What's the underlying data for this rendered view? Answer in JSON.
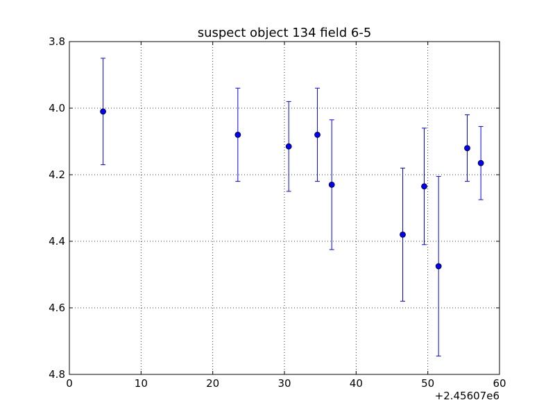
{
  "chart_data": {
    "type": "scatter",
    "title": "suspect object 134 field 6-5",
    "xlabel": "",
    "ylabel": "",
    "x_offset_label": "+2.45607e6",
    "xlim": [
      0,
      60
    ],
    "ylim": [
      4.8,
      3.8
    ],
    "y_inverted": true,
    "grid": true,
    "x_ticks": [
      0,
      10,
      20,
      30,
      40,
      50,
      60
    ],
    "x_tick_labels": [
      "0",
      "10",
      "20",
      "30",
      "40",
      "50",
      "60"
    ],
    "y_ticks": [
      3.8,
      4.0,
      4.2,
      4.4,
      4.6,
      4.8
    ],
    "y_tick_labels": [
      "3.8",
      "4.0",
      "4.2",
      "4.4",
      "4.6",
      "4.8"
    ],
    "marker_color": "#0000ff",
    "points": [
      {
        "x": 4.7,
        "y": 4.01,
        "err": 0.16
      },
      {
        "x": 23.5,
        "y": 4.08,
        "err": 0.14
      },
      {
        "x": 30.6,
        "y": 4.115,
        "err": 0.135
      },
      {
        "x": 34.6,
        "y": 4.08,
        "err": 0.14
      },
      {
        "x": 36.6,
        "y": 4.23,
        "err": 0.195
      },
      {
        "x": 46.5,
        "y": 4.38,
        "err": 0.2
      },
      {
        "x": 49.5,
        "y": 4.235,
        "err": 0.175
      },
      {
        "x": 51.5,
        "y": 4.475,
        "err": 0.27
      },
      {
        "x": 55.5,
        "y": 4.12,
        "err": 0.1
      },
      {
        "x": 57.4,
        "y": 4.165,
        "err": 0.11
      }
    ]
  }
}
